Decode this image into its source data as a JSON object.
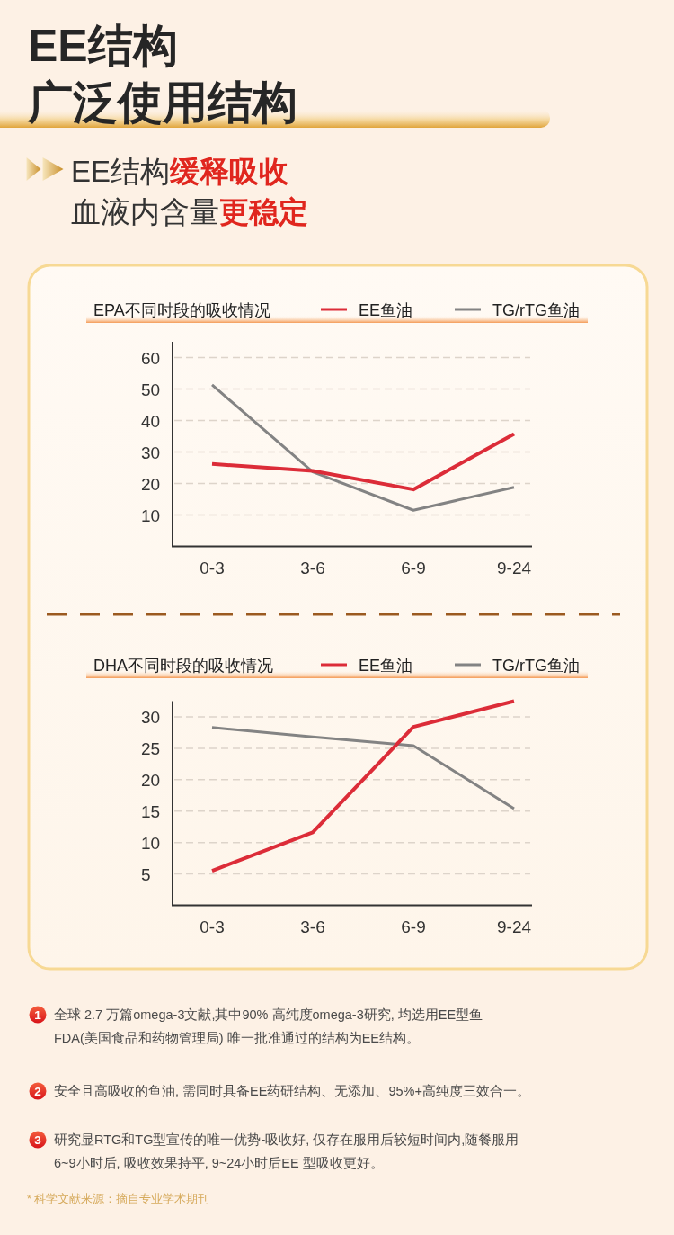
{
  "chart_data": [
    {
      "type": "line",
      "title": "EPA不同时段的吸收情况",
      "categories": [
        "0-3",
        "3-6",
        "6-9",
        "9-24"
      ],
      "series": [
        {
          "name": "EE鱼油",
          "color": "#dc2c38",
          "values": [
            26.2,
            24.0,
            18.1,
            35.7
          ]
        },
        {
          "name": "TG/rTG鱼油",
          "color": "#838383",
          "values": [
            51.3,
            23.7,
            11.5,
            18.8
          ]
        }
      ],
      "ylim": [
        0,
        65
      ],
      "yticks": [
        10,
        20,
        30,
        40,
        50,
        60
      ],
      "grid": "y",
      "legend": "top right",
      "annotations": [
        "EE结构",
        "广泛使用结构",
        "EE结构",
        "缓释吸收",
        "血液内含量",
        "更稳定"
      ]
    },
    {
      "type": "line",
      "title": "DHA不同时段的吸收情况",
      "categories": [
        "0-3",
        "3-6",
        "6-9",
        "9-24"
      ],
      "series": [
        {
          "name": "EE鱼油",
          "color": "#dc2c38",
          "values": [
            5.5,
            11.6,
            28.4,
            32.5
          ]
        },
        {
          "name": "TG/rTG鱼油",
          "color": "#838383",
          "values": [
            28.3,
            26.8,
            25.4,
            15.4
          ]
        }
      ],
      "ylim": [
        0,
        32.5
      ],
      "yticks": [
        5,
        10,
        15,
        20,
        25,
        30
      ],
      "grid": "y",
      "legend": "top right",
      "annotations": [
        "1",
        "全球 2.7 万篇omega-3文献,其中90% 高纯度omega-3研究, 均选用EE型鱼FDA(美国食品和药物管理局) 唯一批准通过的结构为EE结构。",
        "2",
        "安全且高吸收的鱼油, 需同时具备EE药研结构、无添加、95%+高纯度三效合一。",
        "3",
        "研究显RTG和TG型宣传的唯一优势-吸收好, 仅存在服用后较短时间内,随餐服用6~9小时后, 吸收效果持平, 9~24小时后EE 型吸收更好。",
        "* 科学文献来源：摘自专业学术期刊"
      ]
    }
  ]
}
